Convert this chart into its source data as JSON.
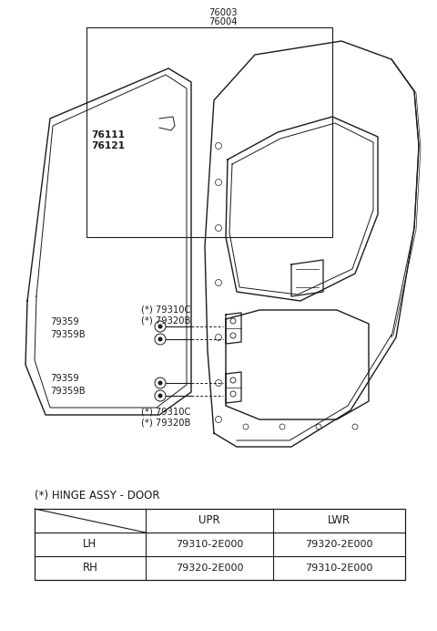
{
  "bg_color": "#ffffff",
  "line_color": "#1a1a1a",
  "text_color": "#1a1a1a",
  "part_numbers": {
    "top_label1": "76003",
    "top_label2": "76004",
    "left_label1": "76111",
    "left_label2": "76121",
    "upper_hinge_label1": "(*) 79310C",
    "upper_hinge_label2": "(*) 79320B",
    "lower_hinge_label1": "(*) 79310C",
    "lower_hinge_label2": "(*) 79320B",
    "bolt1": "79359",
    "bolt1b": "79359B",
    "bolt2": "79359",
    "bolt2b": "79359B"
  },
  "table": {
    "title": "(*) HINGE ASSY - DOOR",
    "headers": [
      "",
      "UPR",
      "LWR"
    ],
    "rows": [
      [
        "LH",
        "79310-2E000",
        "79320-2E000"
      ],
      [
        "RH",
        "79320-2E000",
        "79310-2E000"
      ]
    ]
  }
}
